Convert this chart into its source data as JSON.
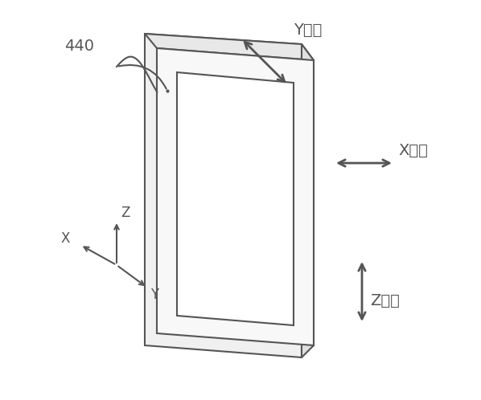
{
  "bg_color": "#ffffff",
  "line_color": "#555555",
  "arrow_color": "#555555",
  "label_440": "440",
  "label_y": "Y方向",
  "label_x": "X方向",
  "label_z": "Z方向",
  "axis_label_X": "X",
  "axis_label_Y": "Y",
  "axis_label_Z": "Z",
  "font_size_labels": 14,
  "font_size_440": 14
}
